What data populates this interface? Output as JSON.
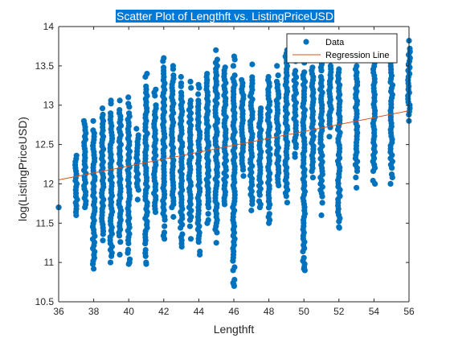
{
  "chart_data": {
    "type": "scatter",
    "title": "Scatter Plot of Lengthft vs. ListingPriceUSD",
    "xlabel": "Lengthft",
    "ylabel": "log(ListingPriceUSD)",
    "xlim": [
      36,
      56
    ],
    "ylim": [
      10.5,
      14
    ],
    "x_ticks": [
      "36",
      "38",
      "40",
      "42",
      "44",
      "46",
      "48",
      "50",
      "52",
      "54",
      "56"
    ],
    "y_ticks": [
      "10.5",
      "11",
      "11.5",
      "12",
      "12.5",
      "13",
      "13.5",
      "14"
    ],
    "grid": false,
    "legend_position": "top-right",
    "colors": {
      "data": "#0072BD",
      "regression": "#D95319",
      "title_background": "#0078D7",
      "axis": "#262626"
    },
    "series": [
      {
        "name": "Data",
        "marker": "circle",
        "columns": [
          {
            "x": 36,
            "ymin": 11.7,
            "ymax": 11.7
          },
          {
            "x": 37,
            "ymin": 11.6,
            "ymax": 12.4
          },
          {
            "x": 37.5,
            "ymin": 11.7,
            "ymax": 12.8
          },
          {
            "x": 38,
            "ymin": 10.9,
            "ymax": 12.8
          },
          {
            "x": 38.5,
            "ymin": 11.2,
            "ymax": 13.0
          },
          {
            "x": 39,
            "ymin": 11.0,
            "ymax": 13.1
          },
          {
            "x": 39.5,
            "ymin": 11.1,
            "ymax": 13.1
          },
          {
            "x": 40,
            "ymin": 11.0,
            "ymax": 13.1
          },
          {
            "x": 40.5,
            "ymin": 11.8,
            "ymax": 12.7
          },
          {
            "x": 41,
            "ymin": 11.0,
            "ymax": 13.4
          },
          {
            "x": 41.5,
            "ymin": 11.6,
            "ymax": 13.2
          },
          {
            "x": 42,
            "ymin": 11.3,
            "ymax": 13.6
          },
          {
            "x": 42.5,
            "ymin": 11.5,
            "ymax": 13.5
          },
          {
            "x": 43,
            "ymin": 11.2,
            "ymax": 13.4
          },
          {
            "x": 43.5,
            "ymin": 11.3,
            "ymax": 13.3
          },
          {
            "x": 44,
            "ymin": 11.1,
            "ymax": 13.3
          },
          {
            "x": 44.5,
            "ymin": 11.5,
            "ymax": 13.4
          },
          {
            "x": 45,
            "ymin": 11.3,
            "ymax": 13.7
          },
          {
            "x": 45.5,
            "ymin": 11.7,
            "ymax": 13.6
          },
          {
            "x": 46,
            "ymin": 10.7,
            "ymax": 13.7
          },
          {
            "x": 46.5,
            "ymin": 12.1,
            "ymax": 13.4
          },
          {
            "x": 47,
            "ymin": 11.5,
            "ymax": 13.6
          },
          {
            "x": 47.5,
            "ymin": 11.7,
            "ymax": 13.0
          },
          {
            "x": 48,
            "ymin": 11.5,
            "ymax": 13.4
          },
          {
            "x": 48.5,
            "ymin": 11.9,
            "ymax": 13.5
          },
          {
            "x": 49,
            "ymin": 11.6,
            "ymax": 13.7
          },
          {
            "x": 49.5,
            "ymin": 12.3,
            "ymax": 13.6
          },
          {
            "x": 50,
            "ymin": 10.9,
            "ymax": 13.7
          },
          {
            "x": 50.5,
            "ymin": 12.0,
            "ymax": 13.6
          },
          {
            "x": 51,
            "ymin": 11.6,
            "ymax": 13.6
          },
          {
            "x": 51.5,
            "ymin": 12.6,
            "ymax": 13.5
          },
          {
            "x": 52,
            "ymin": 11.4,
            "ymax": 13.7
          },
          {
            "x": 53,
            "ymin": 12.0,
            "ymax": 13.7
          },
          {
            "x": 54,
            "ymin": 12.0,
            "ymax": 13.7
          },
          {
            "x": 55,
            "ymin": 12.0,
            "ymax": 13.7
          },
          {
            "x": 56,
            "ymin": 12.8,
            "ymax": 13.8
          }
        ],
        "outliers": [
          {
            "x": 46,
            "y": 10.72
          },
          {
            "x": 50,
            "y": 10.92
          },
          {
            "x": 52,
            "y": 11.45
          },
          {
            "x": 41,
            "y": 10.98
          },
          {
            "x": 40,
            "y": 10.98
          },
          {
            "x": 38,
            "y": 10.92
          },
          {
            "x": 36,
            "y": 11.7
          },
          {
            "x": 45,
            "y": 11.25
          },
          {
            "x": 53,
            "y": 11.95
          },
          {
            "x": 56,
            "y": 13.82
          },
          {
            "x": 55,
            "y": 13.7
          },
          {
            "x": 42,
            "y": 13.6
          }
        ]
      },
      {
        "name": "Regression Line",
        "type": "line",
        "x": [
          36,
          56
        ],
        "y": [
          12.05,
          12.93
        ]
      }
    ]
  }
}
